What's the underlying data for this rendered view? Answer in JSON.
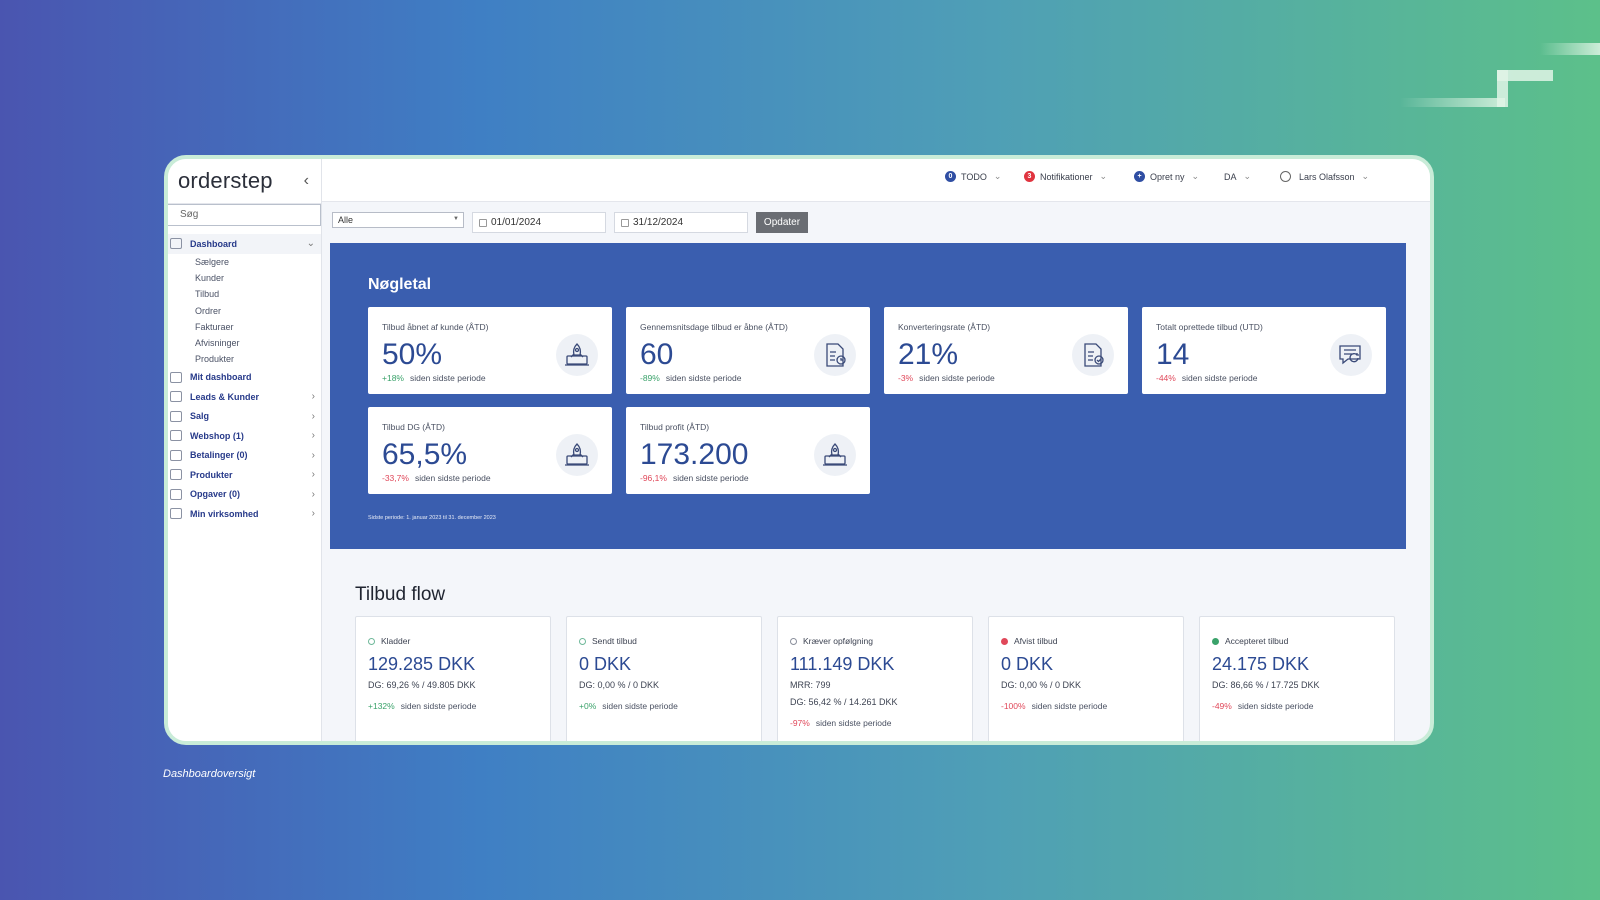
{
  "app": {
    "logo": "orderstep",
    "collapse_icon": "‹"
  },
  "sidebar": {
    "search_placeholder": "Søg",
    "dashboard": {
      "label": "Dashboard",
      "subitems": [
        "Sælgere",
        "Kunder",
        "Tilbud",
        "Ordrer",
        "Fakturaer",
        "Afvisninger",
        "Produkter"
      ]
    },
    "items": [
      {
        "label": "Mit dashboard",
        "icon": "chart-icon",
        "has_chevron": false
      },
      {
        "label": "Leads & Kunder",
        "icon": "contacts-icon",
        "has_chevron": true
      },
      {
        "label": "Salg",
        "icon": "basket-icon",
        "has_chevron": true
      },
      {
        "label": "Webshop (1)",
        "icon": "shop-icon",
        "has_chevron": true
      },
      {
        "label": "Betalinger (0)",
        "icon": "payment-icon",
        "has_chevron": true
      },
      {
        "label": "Produkter",
        "icon": "grid-icon",
        "has_chevron": true
      },
      {
        "label": "Opgaver (0)",
        "icon": "task-icon",
        "has_chevron": true
      },
      {
        "label": "Min virksomhed",
        "icon": "gear-icon",
        "has_chevron": true
      }
    ]
  },
  "topbar": {
    "todo": {
      "badge": "0",
      "label": "TODO"
    },
    "notifications": {
      "badge": "3",
      "label": "Notifikationer"
    },
    "create": {
      "badge": "+",
      "label": "Opret ny"
    },
    "language": "DA",
    "user": "Lars Olafsson"
  },
  "filter": {
    "select_value": "Alle",
    "date_from": "01/01/2024",
    "date_to": "31/12/2024",
    "update_button": "Opdater"
  },
  "kpi": {
    "title": "Nøgletal",
    "period_note": "Sidste periode: 1. januar 2023 til 31. december 2023",
    "cards": [
      {
        "label": "Tilbud åbnet af kunde (ÅTD)",
        "value": "50%",
        "change": "+18%",
        "change_text": "siden sidste periode",
        "trend": "pos",
        "icon": "rocket-laptop-icon"
      },
      {
        "label": "Gennemsnitsdage tilbud er åbne (ÅTD)",
        "value": "60",
        "change": "-89%",
        "change_text": "siden sidste periode",
        "trend": "pos",
        "icon": "document-clock-icon"
      },
      {
        "label": "Konverteringsrate (ÅTD)",
        "value": "21%",
        "change": "-3%",
        "change_text": "siden sidste periode",
        "trend": "neg",
        "icon": "document-check-icon"
      },
      {
        "label": "Totalt oprettede tilbud (UTD)",
        "value": "14",
        "change": "-44%",
        "change_text": "siden sidste periode",
        "trend": "neg",
        "icon": "message-refresh-icon"
      },
      {
        "label": "Tilbud DG (ÅTD)",
        "value": "65,5%",
        "change": "-33,7%",
        "change_text": "siden sidste periode",
        "trend": "neg",
        "icon": "rocket-laptop-icon"
      },
      {
        "label": "Tilbud profit (ÅTD)",
        "value": "173.200",
        "change": "-96,1%",
        "change_text": "siden sidste periode",
        "trend": "neg",
        "icon": "rocket-laptop-icon"
      }
    ]
  },
  "flow": {
    "title": "Tilbud flow",
    "cards": [
      {
        "label": "Kladder",
        "value": "129.285 DKK",
        "lines": [
          "DG: 69,26 % / 49.805 DKK"
        ],
        "change": "+132%",
        "change_text": "siden sidste periode",
        "trend": "pos",
        "dot": "outline"
      },
      {
        "label": "Sendt tilbud",
        "value": "0 DKK",
        "lines": [
          "DG: 0,00 % / 0 DKK"
        ],
        "change": "+0%",
        "change_text": "siden sidste periode",
        "trend": "pos",
        "dot": "outline"
      },
      {
        "label": "Kræver opfølgning",
        "value": "111.149 DKK",
        "lines": [
          "MRR: 799",
          "DG: 56,42 % / 14.261 DKK"
        ],
        "change": "-97%",
        "change_text": "siden sidste periode",
        "trend": "neg",
        "dot": "outline-gray"
      },
      {
        "label": "Afvist tilbud",
        "value": "0 DKK",
        "lines": [
          "DG: 0,00 % / 0 DKK"
        ],
        "change": "-100%",
        "change_text": "siden sidste periode",
        "trend": "neg",
        "dot": "red"
      },
      {
        "label": "Accepteret tilbud",
        "value": "24.175 DKK",
        "lines": [
          "DG: 86,66 % / 17.725 DKK"
        ],
        "change": "-49%",
        "change_text": "siden sidste periode",
        "trend": "neg",
        "dot": "green"
      }
    ]
  },
  "caption": "Dashboardoversigt",
  "colors": {
    "primary": "#3a5eaf",
    "positive": "#3aa26a",
    "negative": "#e0485a",
    "todo_badge": "#2f4ea3",
    "notification_badge": "#e0343f"
  }
}
